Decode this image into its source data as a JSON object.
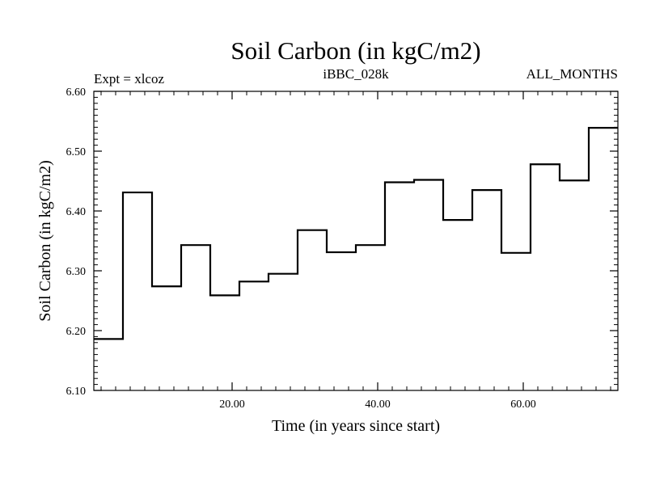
{
  "chart_data": {
    "type": "line",
    "title": "Soil Carbon (in kgC/m2)",
    "header_left": "Expt = xlcoz",
    "header_center": "iBBC_028k",
    "header_right": "ALL_MONTHS",
    "xlabel": "Time (in years since start)",
    "ylabel": "Soil Carbon (in kgC/m2)",
    "xlim": [
      1,
      73
    ],
    "ylim": [
      6.1,
      6.6
    ],
    "x_ticks": [
      20,
      40,
      60
    ],
    "x_tick_labels": [
      "20.00",
      "40.00",
      "60.00"
    ],
    "y_ticks": [
      6.1,
      6.2,
      6.3,
      6.4,
      6.5,
      6.6
    ],
    "y_tick_labels": [
      "6.10",
      "6.20",
      "6.30",
      "6.40",
      "6.50",
      "6.60"
    ],
    "x_minor_step": 2,
    "y_minor_step": 0.01,
    "series": [
      {
        "style": "step",
        "color": "#000000",
        "x": [
          1,
          5,
          9,
          13,
          17,
          21,
          25,
          29,
          33,
          37,
          41,
          45,
          49,
          53,
          57,
          61,
          65,
          69,
          73
        ],
        "values": [
          6.186,
          6.431,
          6.274,
          6.343,
          6.259,
          6.282,
          6.295,
          6.368,
          6.331,
          6.343,
          6.448,
          6.452,
          6.385,
          6.435,
          6.33,
          6.478,
          6.451,
          6.539,
          6.539
        ]
      }
    ]
  }
}
